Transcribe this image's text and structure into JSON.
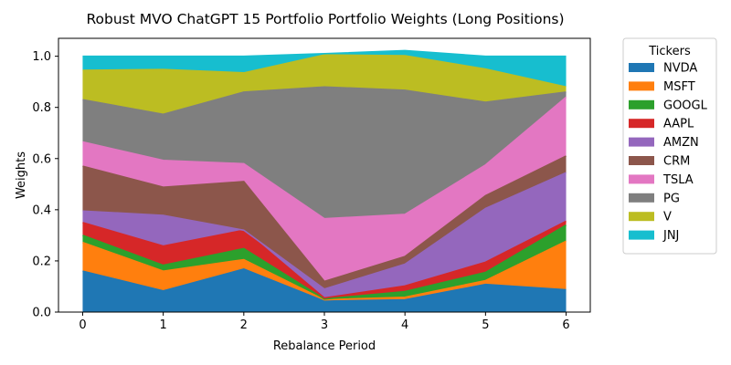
{
  "chart_data": {
    "type": "area",
    "stacked": true,
    "title": "Robust MVO ChatGPT 15 Portfolio Portfolio Weights (Long Positions)",
    "xlabel": "Rebalance Period",
    "ylabel": "Weights",
    "x": [
      0,
      1,
      2,
      3,
      4,
      5,
      6
    ],
    "xlim": [
      -0.3,
      6.3
    ],
    "ylim": [
      0.0,
      1.07
    ],
    "x_ticks": [
      "0",
      "1",
      "2",
      "3",
      "4",
      "5",
      "6"
    ],
    "y_ticks": [
      "0.0",
      "0.2",
      "0.4",
      "0.6",
      "0.8",
      "1.0"
    ],
    "grid": false,
    "legend": {
      "title": "Tickers",
      "placement": "outside-right-top"
    },
    "series": [
      {
        "name": "NVDA",
        "color": "#1f77b4",
        "values": [
          0.16,
          0.083,
          0.168,
          0.043,
          0.048,
          0.108,
          0.087
        ]
      },
      {
        "name": "MSFT",
        "color": "#ff7f0e",
        "values": [
          0.112,
          0.077,
          0.037,
          0.005,
          0.01,
          0.015,
          0.19
        ]
      },
      {
        "name": "GOOGL",
        "color": "#2ca02c",
        "values": [
          0.028,
          0.023,
          0.043,
          0.003,
          0.022,
          0.032,
          0.063
        ]
      },
      {
        "name": "AAPL",
        "color": "#d62728",
        "values": [
          0.05,
          0.075,
          0.072,
          0.004,
          0.022,
          0.04,
          0.015
        ]
      },
      {
        "name": "AMZN",
        "color": "#9467bd",
        "values": [
          0.045,
          0.12,
          0.0,
          0.035,
          0.085,
          0.21,
          0.19
        ]
      },
      {
        "name": "CRM",
        "color": "#8c564b",
        "values": [
          0.175,
          0.11,
          0.19,
          0.03,
          0.03,
          0.05,
          0.065
        ]
      },
      {
        "name": "TSLA",
        "color": "#e377c2",
        "values": [
          0.095,
          0.105,
          0.07,
          0.245,
          0.165,
          0.12,
          0.23
        ]
      },
      {
        "name": "PG",
        "color": "#7f7f7f",
        "values": [
          0.165,
          0.18,
          0.28,
          0.515,
          0.485,
          0.245,
          0.02
        ]
      },
      {
        "name": "V",
        "color": "#bcbd22",
        "values": [
          0.115,
          0.175,
          0.075,
          0.125,
          0.135,
          0.13,
          0.02
        ]
      },
      {
        "name": "JNJ",
        "color": "#17becf",
        "values": [
          0.055,
          0.052,
          0.065,
          0.005,
          0.02,
          0.05,
          0.12
        ]
      }
    ]
  }
}
